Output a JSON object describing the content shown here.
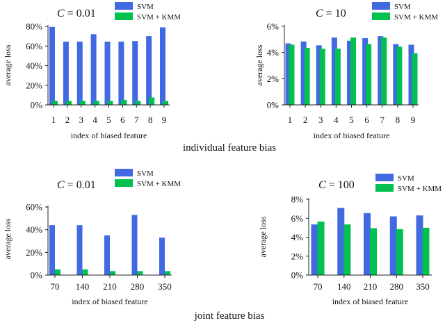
{
  "captions": {
    "individual": "individual feature bias",
    "joint": "joint feature bias"
  },
  "colors": {
    "svm": "#4169E1",
    "kmm": "#00C050",
    "axis": "#222222"
  },
  "chart_data": [
    {
      "id": "c1",
      "type": "bar",
      "title_var": "C",
      "title_val": " = 0.01",
      "xlabel": "index of biased feature",
      "ylabel": "average loss",
      "ylim": [
        0,
        80
      ],
      "yticks": [
        0,
        20,
        40,
        60,
        80
      ],
      "ytick_labels": [
        "0%",
        "20%",
        "40%",
        "60%",
        "80%"
      ],
      "categories": [
        "1",
        "2",
        "3",
        "4",
        "5",
        "6",
        "7",
        "8",
        "9"
      ],
      "series": [
        {
          "name": "SVM",
          "values": [
            79.5,
            64.5,
            64.5,
            72.0,
            64.5,
            64.5,
            65.0,
            70.0,
            79.0
          ]
        },
        {
          "name": "SVM + KMM",
          "values": [
            4.2,
            4.2,
            4.2,
            4.2,
            4.2,
            5.0,
            4.2,
            7.5,
            4.2
          ]
        }
      ]
    },
    {
      "id": "c2",
      "type": "bar",
      "title_var": "C",
      "title_val": " = 10",
      "xlabel": "index of biased feature",
      "ylabel": "average loss",
      "ylim": [
        0,
        6
      ],
      "yticks": [
        0,
        2,
        4,
        6
      ],
      "ytick_labels": [
        "0%",
        "2%",
        "4%",
        "6%"
      ],
      "categories": [
        "1",
        "2",
        "3",
        "4",
        "5",
        "6",
        "7",
        "8",
        "9"
      ],
      "series": [
        {
          "name": "SVM",
          "values": [
            4.7,
            4.85,
            4.55,
            5.15,
            4.9,
            5.1,
            5.25,
            4.65,
            4.6
          ]
        },
        {
          "name": "SVM + KMM",
          "values": [
            4.6,
            4.35,
            4.3,
            4.3,
            5.15,
            4.65,
            5.15,
            4.45,
            3.95
          ]
        }
      ]
    },
    {
      "id": "c3",
      "type": "bar",
      "title_var": "C",
      "title_val": " = 0.01",
      "xlabel": "index of biased feature",
      "ylabel": "average loss",
      "ylim": [
        0,
        60
      ],
      "yticks": [
        0,
        20,
        40,
        60
      ],
      "ytick_labels": [
        "0%",
        "20%",
        "40%",
        "60%"
      ],
      "categories": [
        "70",
        "140",
        "210",
        "280",
        "350"
      ],
      "series": [
        {
          "name": "SVM",
          "values": [
            44.0,
            44.0,
            35.0,
            53.0,
            33.0
          ]
        },
        {
          "name": "SVM + KMM",
          "values": [
            5.0,
            5.0,
            3.5,
            3.5,
            3.5
          ]
        }
      ]
    },
    {
      "id": "c4",
      "type": "bar",
      "title_var": "C",
      "title_val": " = 100",
      "xlabel": "index of biased feature",
      "ylabel": "average loss",
      "ylim": [
        0,
        8
      ],
      "yticks": [
        0,
        2,
        4,
        6,
        8
      ],
      "ytick_labels": [
        "0%",
        "2%",
        "4%",
        "6%",
        "8%"
      ],
      "categories": [
        "70",
        "140",
        "210",
        "280",
        "350"
      ],
      "series": [
        {
          "name": "SVM",
          "values": [
            5.35,
            7.1,
            6.55,
            6.2,
            6.3
          ]
        },
        {
          "name": "SVM + KMM",
          "values": [
            5.65,
            5.35,
            4.95,
            4.85,
            5.0
          ]
        }
      ]
    }
  ]
}
